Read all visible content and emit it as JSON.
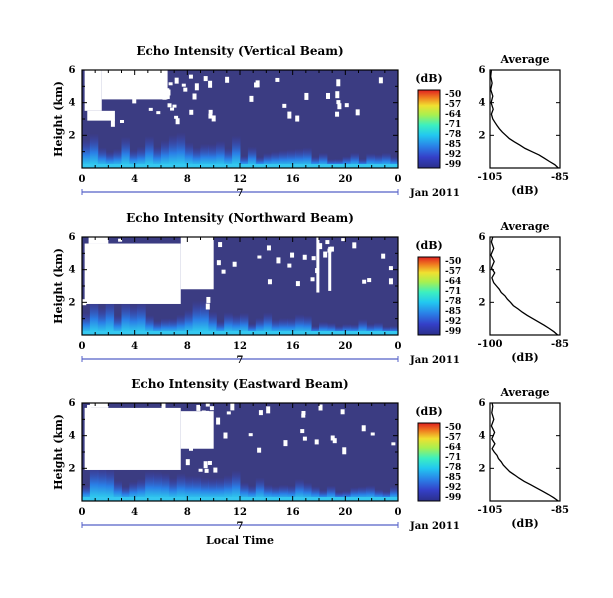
{
  "chart_data": [
    {
      "type": "heatmap",
      "title": "Echo Intensity (Vertical Beam)",
      "ylabel": "Height (km)",
      "ylim": [
        0,
        6
      ],
      "y_ticks": [
        "2",
        "4",
        "6"
      ],
      "xlim": [
        0,
        24
      ],
      "x_ticks": [
        "0",
        "4",
        "8",
        "12",
        "16",
        "20",
        "0"
      ],
      "day_label": "7",
      "date_label": "Jan 2011",
      "colorbar": {
        "unit": "(dB)",
        "ticks": [
          "-50",
          "-57",
          "-64",
          "-71",
          "-78",
          "-85",
          "-92",
          "-99"
        ]
      },
      "profile": {
        "title": "Average",
        "xlabel": "(dB)",
        "xlim": [
          -105,
          -85
        ],
        "x_ticks": [
          "-105",
          "-85"
        ],
        "ylim": [
          0,
          6
        ],
        "y_ticks": [
          "2",
          "4",
          "6"
        ],
        "points": [
          [
            -85.5,
            0
          ],
          [
            -86.5,
            0.2
          ],
          [
            -88,
            0.4
          ],
          [
            -89.5,
            0.6
          ],
          [
            -91,
            0.8
          ],
          [
            -93,
            1
          ],
          [
            -95,
            1.2
          ],
          [
            -96.5,
            1.4
          ],
          [
            -98,
            1.6
          ],
          [
            -99.5,
            1.8
          ],
          [
            -100.5,
            2
          ],
          [
            -101.5,
            2.2
          ],
          [
            -102.3,
            2.4
          ],
          [
            -103,
            2.6
          ],
          [
            -103.6,
            2.8
          ],
          [
            -104.2,
            3
          ],
          [
            -104.6,
            3.3
          ],
          [
            -104.1,
            3.6
          ],
          [
            -104.7,
            4
          ],
          [
            -104.2,
            4.4
          ],
          [
            -104.8,
            4.8
          ],
          [
            -104.4,
            5.2
          ],
          [
            -104.8,
            5.6
          ],
          [
            -104.6,
            6
          ]
        ]
      }
    },
    {
      "type": "heatmap",
      "title": "Echo Intensity (Northward Beam)",
      "ylabel": "Height (km)",
      "ylim": [
        0,
        6
      ],
      "y_ticks": [
        "2",
        "4",
        "6"
      ],
      "xlim": [
        0,
        24
      ],
      "x_ticks": [
        "0",
        "4",
        "8",
        "12",
        "16",
        "20",
        "0"
      ],
      "day_label": "7",
      "date_label": "Jan 2011",
      "colorbar": {
        "unit": "(dB)",
        "ticks": [
          "-50",
          "-57",
          "-64",
          "-71",
          "-78",
          "-85",
          "-92",
          "-99"
        ]
      },
      "profile": {
        "title": "Average",
        "xlabel": "(dB)",
        "xlim": [
          -100,
          -85
        ],
        "x_ticks": [
          "-100",
          "-85"
        ],
        "ylim": [
          0,
          6
        ],
        "y_ticks": [
          "2",
          "4",
          "6"
        ],
        "points": [
          [
            -85.5,
            0
          ],
          [
            -86.3,
            0.2
          ],
          [
            -87.3,
            0.4
          ],
          [
            -88.4,
            0.6
          ],
          [
            -89.6,
            0.8
          ],
          [
            -90.8,
            1
          ],
          [
            -92,
            1.2
          ],
          [
            -93.1,
            1.4
          ],
          [
            -94,
            1.6
          ],
          [
            -95,
            1.8
          ],
          [
            -95.6,
            2
          ],
          [
            -96.3,
            2.2
          ],
          [
            -96.8,
            2.4
          ],
          [
            -97.6,
            2.6
          ],
          [
            -98,
            2.8
          ],
          [
            -98.6,
            3
          ],
          [
            -99.2,
            3.2
          ],
          [
            -99.6,
            3.5
          ],
          [
            -99,
            3.8
          ],
          [
            -99.7,
            4.1
          ],
          [
            -99.1,
            4.5
          ],
          [
            -99.8,
            4.9
          ],
          [
            -99.2,
            5.3
          ],
          [
            -99.7,
            5.7
          ],
          [
            -99.4,
            6
          ]
        ]
      }
    },
    {
      "type": "heatmap",
      "title": "Echo Intensity (Eastward Beam)",
      "ylabel": "Height (km)",
      "ylim": [
        0,
        6
      ],
      "y_ticks": [
        "2",
        "4",
        "6"
      ],
      "xlim": [
        0,
        24
      ],
      "x_ticks": [
        "0",
        "4",
        "8",
        "12",
        "16",
        "20",
        "0"
      ],
      "xlabel": "Local Time",
      "day_label": "7",
      "date_label": "Jan 2011",
      "colorbar": {
        "unit": "(dB)",
        "ticks": [
          "-50",
          "-57",
          "-64",
          "-71",
          "-78",
          "-85",
          "-92",
          "-99"
        ]
      },
      "profile": {
        "title": "Average",
        "xlabel": "(dB)",
        "xlim": [
          -105,
          -85
        ],
        "x_ticks": [
          "-105",
          "-85"
        ],
        "ylim": [
          0,
          6
        ],
        "y_ticks": [
          "2",
          "4",
          "6"
        ],
        "points": [
          [
            -85.5,
            0
          ],
          [
            -86.8,
            0.2
          ],
          [
            -88.3,
            0.4
          ],
          [
            -90,
            0.6
          ],
          [
            -91.7,
            0.8
          ],
          [
            -93.4,
            1
          ],
          [
            -95.2,
            1.2
          ],
          [
            -96.7,
            1.4
          ],
          [
            -98,
            1.6
          ],
          [
            -99.4,
            1.8
          ],
          [
            -100.3,
            2
          ],
          [
            -101.2,
            2.2
          ],
          [
            -101.8,
            2.4
          ],
          [
            -102.6,
            2.6
          ],
          [
            -103,
            2.8
          ],
          [
            -103.8,
            3
          ],
          [
            -104.4,
            3.2
          ],
          [
            -103.6,
            3.5
          ],
          [
            -104.5,
            3.8
          ],
          [
            -103.7,
            4.2
          ],
          [
            -104.6,
            4.6
          ],
          [
            -103.9,
            5
          ],
          [
            -104.5,
            5.4
          ],
          [
            -104.2,
            5.8
          ],
          [
            -104.4,
            6
          ]
        ]
      }
    }
  ]
}
